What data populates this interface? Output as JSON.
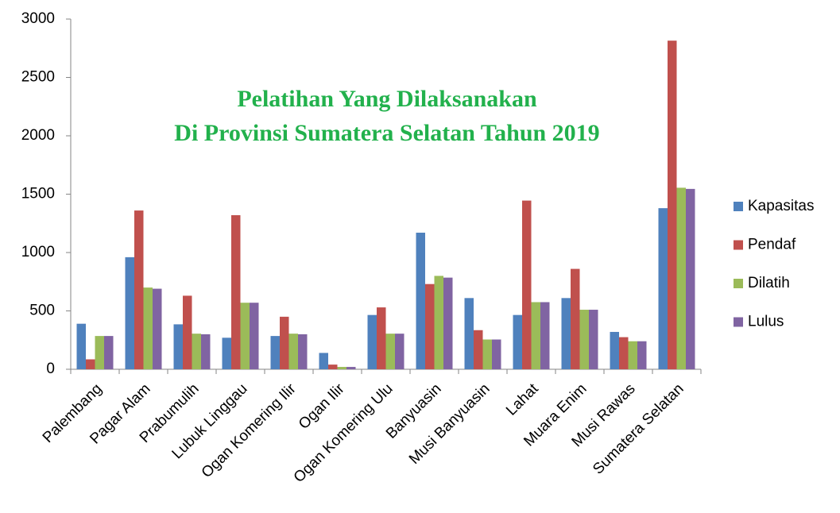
{
  "chart_data": {
    "type": "bar",
    "title": "Pelatihan Yang Dilaksanakan",
    "subtitle": "Di Provinsi Sumatera Selatan Tahun 2019",
    "title_color": "#22b14c",
    "categories": [
      "Palembang",
      "Pagar Alam",
      "Prabumulih",
      "Lubuk Linggau",
      "Ogan Komering Ilir",
      "Ogan Ilir",
      "Ogan Komering Ulu",
      "Banyuasin",
      "Musi Banyuasin",
      "Lahat",
      "Muara Enim",
      "Musi Rawas",
      "Sumatera Selatan"
    ],
    "series": [
      {
        "name": "Kapasitas",
        "color": "#4f81bd",
        "values": [
          390,
          960,
          385,
          270,
          285,
          140,
          465,
          1170,
          610,
          465,
          610,
          320,
          1380
        ]
      },
      {
        "name": "Pendaf",
        "color": "#c0504d",
        "values": [
          85,
          1360,
          630,
          1320,
          450,
          40,
          530,
          730,
          335,
          1445,
          860,
          275,
          2815
        ]
      },
      {
        "name": "Dilatih",
        "color": "#9bbb59",
        "values": [
          285,
          700,
          305,
          570,
          305,
          20,
          305,
          800,
          255,
          575,
          510,
          240,
          1555
        ]
      },
      {
        "name": "Lulus",
        "color": "#8064a2",
        "values": [
          285,
          690,
          300,
          570,
          300,
          20,
          305,
          785,
          255,
          575,
          510,
          240,
          1545
        ]
      }
    ],
    "ylim": [
      0,
      3000
    ],
    "yticks": [
      0,
      500,
      1000,
      1500,
      2000,
      2500,
      3000
    ],
    "grid": false,
    "legend": "right"
  }
}
